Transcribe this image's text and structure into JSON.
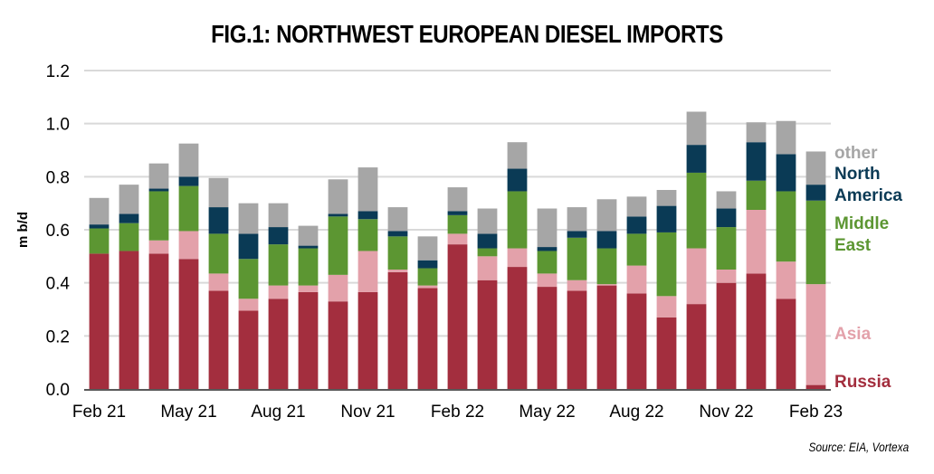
{
  "chart_data": {
    "type": "bar",
    "stacked": true,
    "title": "FIG.1: NORTHWEST EUROPEAN DIESEL IMPORTS",
    "xlabel": "",
    "ylabel": "m b/d",
    "ylim": [
      0,
      1.2
    ],
    "yticks": [
      "0.0",
      "0.2",
      "0.4",
      "0.6",
      "0.8",
      "1.0",
      "1.2"
    ],
    "ytick_values": [
      0,
      0.2,
      0.4,
      0.6,
      0.8,
      1.0,
      1.2
    ],
    "grid": true,
    "legend_position": "right",
    "categories": [
      "Feb 21",
      "Mar 21",
      "Apr 21",
      "May 21",
      "Jun 21",
      "Jul 21",
      "Aug 21",
      "Sep 21",
      "Oct 21",
      "Nov 21",
      "Dec 21",
      "Jan 22",
      "Feb 22",
      "Mar 22",
      "Apr 22",
      "May 22",
      "Jun 22",
      "Jul 22",
      "Aug 22",
      "Sep 22",
      "Oct 22",
      "Nov 22",
      "Dec 22",
      "Jan 23",
      "Feb 23"
    ],
    "xtick_labels": [
      "Feb 21",
      "May 21",
      "Aug 21",
      "Nov 21",
      "Feb 22",
      "May 22",
      "Aug 22",
      "Nov 22",
      "Feb 23"
    ],
    "xtick_indices": [
      0,
      3,
      6,
      9,
      12,
      15,
      18,
      21,
      24
    ],
    "series": [
      {
        "name": "Russia",
        "color": "#a32e3e",
        "values": [
          0.51,
          0.52,
          0.51,
          0.49,
          0.37,
          0.295,
          0.34,
          0.365,
          0.33,
          0.365,
          0.44,
          0.38,
          0.545,
          0.41,
          0.46,
          0.385,
          0.37,
          0.39,
          0.36,
          0.27,
          0.32,
          0.4,
          0.435,
          0.34,
          0.015
        ]
      },
      {
        "name": "Asia",
        "color": "#e3a1aa",
        "values": [
          0.0,
          0.0,
          0.05,
          0.105,
          0.065,
          0.045,
          0.05,
          0.025,
          0.1,
          0.155,
          0.01,
          0.01,
          0.04,
          0.09,
          0.07,
          0.05,
          0.04,
          0.005,
          0.105,
          0.08,
          0.21,
          0.05,
          0.24,
          0.14,
          0.38
        ]
      },
      {
        "name": "Middle East",
        "color": "#5c9632",
        "values": [
          0.095,
          0.105,
          0.185,
          0.17,
          0.15,
          0.15,
          0.155,
          0.14,
          0.22,
          0.12,
          0.125,
          0.065,
          0.07,
          0.03,
          0.215,
          0.085,
          0.16,
          0.135,
          0.12,
          0.24,
          0.285,
          0.16,
          0.11,
          0.265,
          0.315
        ]
      },
      {
        "name": "North America",
        "color": "#0a3a55",
        "values": [
          0.015,
          0.035,
          0.01,
          0.035,
          0.1,
          0.095,
          0.065,
          0.01,
          0.01,
          0.03,
          0.02,
          0.03,
          0.015,
          0.055,
          0.085,
          0.015,
          0.025,
          0.065,
          0.065,
          0.1,
          0.105,
          0.07,
          0.145,
          0.14,
          0.06
        ]
      },
      {
        "name": "other",
        "color": "#a6a6a6",
        "values": [
          0.1,
          0.11,
          0.095,
          0.125,
          0.11,
          0.115,
          0.09,
          0.075,
          0.13,
          0.165,
          0.09,
          0.09,
          0.09,
          0.095,
          0.1,
          0.145,
          0.09,
          0.12,
          0.075,
          0.06,
          0.125,
          0.065,
          0.075,
          0.125,
          0.125
        ]
      }
    ],
    "legend": [
      {
        "label_lines": [
          "other"
        ],
        "color": "#a6a6a6"
      },
      {
        "label_lines": [
          "North",
          "America"
        ],
        "color": "#0a3a55"
      },
      {
        "label_lines": [
          "Middle",
          "East"
        ],
        "color": "#5c9632"
      },
      {
        "label_lines": [
          "Asia"
        ],
        "color": "#e3a1aa"
      },
      {
        "label_lines": [
          "Russia"
        ],
        "color": "#a32e3e"
      }
    ],
    "source": "Source: EIA, Vortexa"
  }
}
